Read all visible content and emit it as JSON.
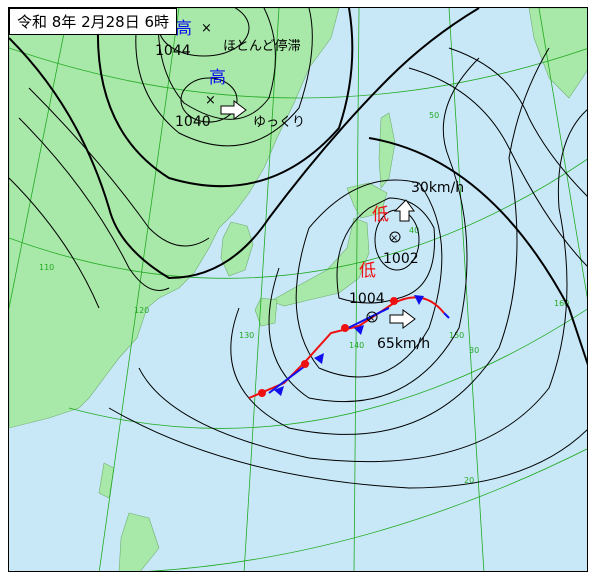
{
  "title": "令和 8年 2月28日 6時",
  "colors": {
    "sea": "#c8e8f8",
    "land": "#a8e8a8",
    "grid": "#22aa22",
    "isobar": "#000000",
    "high": "#1010ee",
    "low": "#ee1010",
    "warm_front": "#ee1010",
    "cold_front": "#1010ee"
  },
  "highs": [
    {
      "label": "高",
      "pressure": "1044",
      "note": "ほとんど停滞"
    },
    {
      "label": "高",
      "pressure": "1040",
      "note": "ゆっくり"
    }
  ],
  "lows": [
    {
      "label": "低",
      "pressure": "1002",
      "speed": "30km/h"
    },
    {
      "label": "低",
      "pressure": "1004",
      "speed": "65km/h"
    }
  ],
  "grid_labels": {
    "lat": [
      "50",
      "40",
      "30",
      "20"
    ],
    "lon": [
      "110",
      "120",
      "130",
      "140",
      "150",
      "160"
    ]
  }
}
